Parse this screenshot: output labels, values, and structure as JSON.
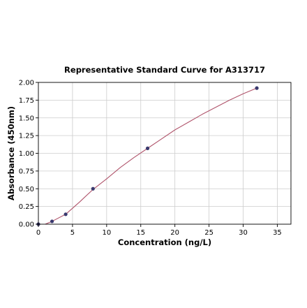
{
  "chart_data": {
    "type": "scatter",
    "title": "Representative Standard Curve for A313717",
    "xlabel": "Concentration (ng/L)",
    "ylabel": "Absorbance (450nm)",
    "xlim": [
      0,
      37
    ],
    "ylim": [
      0,
      2.0
    ],
    "xticks": [
      0,
      5,
      10,
      15,
      20,
      25,
      30,
      35
    ],
    "xtick_labels": [
      "0",
      "5",
      "10",
      "15",
      "20",
      "25",
      "30",
      "35"
    ],
    "yticks": [
      0,
      0.25,
      0.5,
      0.75,
      1.0,
      1.25,
      1.5,
      1.75,
      2.0
    ],
    "ytick_labels": [
      "0.00",
      "0.25",
      "0.50",
      "0.75",
      "1.00",
      "1.25",
      "1.50",
      "1.75",
      "2.00"
    ],
    "grid": true,
    "series": [
      {
        "type": "scatter",
        "x": [
          0,
          2,
          4,
          8,
          16,
          32
        ],
        "y": [
          0.0,
          0.04,
          0.14,
          0.5,
          1.07,
          1.92
        ]
      },
      {
        "type": "line",
        "x": [
          1.0,
          2.0,
          4.0,
          6.0,
          8.0,
          10.0,
          12.0,
          14.0,
          16.0,
          18.0,
          20.0,
          22.0,
          24.0,
          26.0,
          28.0,
          30.0,
          32.0
        ],
        "y": [
          0.0,
          0.04,
          0.14,
          0.31,
          0.49,
          0.64,
          0.8,
          0.94,
          1.07,
          1.2,
          1.33,
          1.44,
          1.55,
          1.65,
          1.75,
          1.84,
          1.92
        ]
      }
    ]
  },
  "colors": {
    "curve": "#b0546b",
    "points": "#3a3a6e",
    "grid": "#cccccc",
    "axes": "#000000"
  }
}
